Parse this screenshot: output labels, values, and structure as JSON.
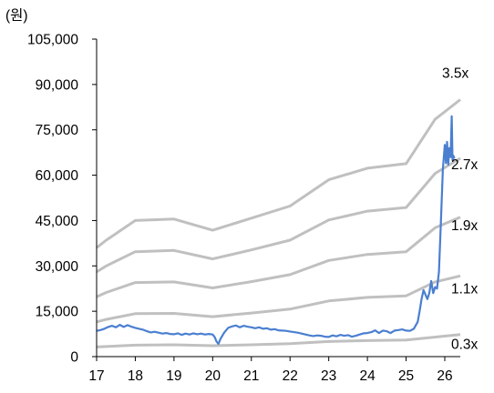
{
  "chart_data": {
    "type": "line",
    "unit_label": "(원)",
    "xlabel": "",
    "ylabel": "",
    "x_ticks": [
      "17",
      "18",
      "19",
      "20",
      "21",
      "22",
      "23",
      "24",
      "25",
      "26"
    ],
    "xlim": [
      2017,
      2026.5
    ],
    "ylim": [
      0,
      105000
    ],
    "y_ticks": [
      0,
      15000,
      30000,
      45000,
      60000,
      75000,
      90000,
      105000
    ],
    "y_tick_labels": [
      "0",
      "15,000",
      "30,000",
      "45,000",
      "60,000",
      "75,000",
      "90,000",
      "105,000"
    ],
    "grid": false,
    "legend": "none",
    "colors": {
      "price": "#4a7fd0",
      "bands": "#c0c0c0",
      "axis": "#000000"
    },
    "bands": [
      {
        "label": "3.5x",
        "x": [
          2017,
          2017.25,
          2018,
          2019,
          2020,
          2021,
          2022,
          2023,
          2024,
          2025,
          2025.75,
          2026.4
        ],
        "values": [
          36000,
          38500,
          45000,
          45500,
          41800,
          45800,
          49800,
          58500,
          62300,
          63800,
          78500,
          85000
        ]
      },
      {
        "label": "2.7x",
        "x": [
          2017,
          2017.25,
          2018,
          2019,
          2020,
          2021,
          2022,
          2023,
          2024,
          2025,
          2025.75,
          2026.4
        ],
        "values": [
          28000,
          30000,
          34700,
          35100,
          32300,
          35300,
          38500,
          45200,
          48100,
          49300,
          60600,
          65600
        ]
      },
      {
        "label": "1.9x",
        "x": [
          2017,
          2017.25,
          2018,
          2019,
          2020,
          2021,
          2022,
          2023,
          2024,
          2025,
          2025.75,
          2026.4
        ],
        "values": [
          19800,
          21200,
          24500,
          24700,
          22700,
          24800,
          27100,
          31800,
          33800,
          34700,
          42600,
          46100
        ]
      },
      {
        "label": "1.1x",
        "x": [
          2017,
          2017.25,
          2018,
          2019,
          2020,
          2021,
          2022,
          2023,
          2024,
          2025,
          2025.75,
          2026.4
        ],
        "values": [
          11500,
          12300,
          14200,
          14300,
          13200,
          14400,
          15700,
          18400,
          19600,
          20100,
          24700,
          26700
        ]
      },
      {
        "label": "0.3x",
        "x": [
          2017,
          2018,
          2019,
          2020,
          2021,
          2022,
          2023,
          2024,
          2025,
          2026.4
        ],
        "values": [
          3200,
          3800,
          3900,
          3600,
          3900,
          4300,
          5000,
          5300,
          5500,
          7300
        ]
      }
    ],
    "price": {
      "name": "",
      "x": [
        2017,
        2017.1,
        2017.2,
        2017.3,
        2017.4,
        2017.5,
        2017.6,
        2017.7,
        2017.8,
        2017.9,
        2018,
        2018.1,
        2018.2,
        2018.3,
        2018.4,
        2018.5,
        2018.6,
        2018.7,
        2018.8,
        2018.9,
        2019,
        2019.1,
        2019.2,
        2019.3,
        2019.4,
        2019.5,
        2019.6,
        2019.7,
        2019.8,
        2019.9,
        2020,
        2020.05,
        2020.1,
        2020.15,
        2020.2,
        2020.3,
        2020.4,
        2020.5,
        2020.6,
        2020.7,
        2020.8,
        2020.9,
        2021,
        2021.1,
        2021.2,
        2021.3,
        2021.4,
        2021.5,
        2021.6,
        2021.7,
        2021.8,
        2021.9,
        2022,
        2022.1,
        2022.2,
        2022.3,
        2022.4,
        2022.5,
        2022.6,
        2022.7,
        2022.8,
        2022.9,
        2023,
        2023.1,
        2023.2,
        2023.3,
        2023.4,
        2023.5,
        2023.6,
        2023.7,
        2023.8,
        2023.9,
        2024,
        2024.1,
        2024.2,
        2024.3,
        2024.4,
        2024.5,
        2024.6,
        2024.7,
        2024.8,
        2024.9,
        2025,
        2025.1,
        2025.2,
        2025.3,
        2025.35,
        2025.4,
        2025.45,
        2025.5,
        2025.55,
        2025.6,
        2025.65,
        2025.7,
        2025.75,
        2025.8,
        2025.85,
        2025.9,
        2025.95,
        2026,
        2026.03,
        2026.06,
        2026.09,
        2026.12,
        2026.15,
        2026.18,
        2026.2,
        2026.22,
        2026.25
      ],
      "values": [
        8500,
        8800,
        9200,
        9800,
        10200,
        9700,
        10500,
        9800,
        10400,
        9900,
        9500,
        9200,
        8900,
        8400,
        8000,
        8200,
        7900,
        7600,
        7800,
        7500,
        7400,
        7700,
        7200,
        7600,
        7300,
        7700,
        7400,
        7600,
        7300,
        7500,
        7300,
        6500,
        5000,
        4200,
        5800,
        8000,
        9500,
        10000,
        10300,
        9700,
        10200,
        9900,
        9700,
        9400,
        9700,
        9200,
        9400,
        8900,
        9100,
        8700,
        8600,
        8500,
        8300,
        8100,
        7900,
        7600,
        7300,
        7000,
        6800,
        7000,
        6900,
        6600,
        6500,
        7000,
        6700,
        7200,
        6900,
        7100,
        6600,
        6900,
        7300,
        7700,
        7800,
        8100,
        8700,
        7800,
        8600,
        8400,
        7800,
        8600,
        8800,
        9000,
        8600,
        8500,
        9200,
        11500,
        15000,
        19000,
        22000,
        20500,
        19000,
        21000,
        25000,
        21000,
        23000,
        22500,
        28000,
        45000,
        62000,
        70000,
        64000,
        71000,
        63500,
        69000,
        66000,
        79500,
        65000,
        66500,
        65500
      ]
    },
    "label_positions": [
      "3.5x",
      "2.7x",
      "1.9x",
      "1.1x",
      "0.3x"
    ]
  }
}
